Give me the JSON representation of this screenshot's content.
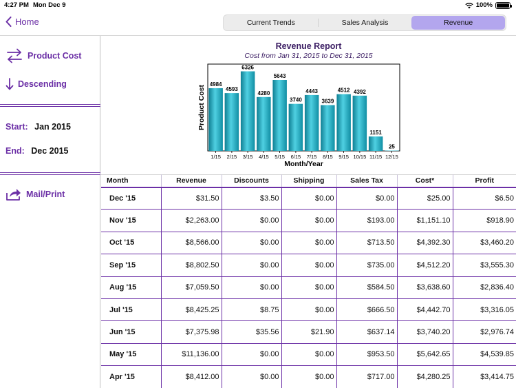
{
  "status": {
    "time": "4:27 PM",
    "date": "Mon Dec 9",
    "battery": "100%"
  },
  "nav": {
    "back_label": "Home",
    "tabs": [
      {
        "label": "Current Trends",
        "active": false
      },
      {
        "label": "Sales Analysis",
        "active": false
      },
      {
        "label": "Revenue",
        "active": true
      }
    ]
  },
  "sidebar": {
    "sort_field": "Product Cost",
    "sort_order": "Descending",
    "start_label": "Start:",
    "start_value": "Jan 2015",
    "end_label": "End:",
    "end_value": "Dec 2015",
    "mail_print": "Mail/Print"
  },
  "chart_data": {
    "type": "bar",
    "title": "Revenue Report",
    "subtitle": "Cost from Jan 31, 2015 to Dec 31, 2015",
    "xlabel": "Month/Year",
    "ylabel": "Product Cost",
    "categories": [
      "1/15",
      "2/15",
      "3/15",
      "4/15",
      "5/15",
      "6/15",
      "7/15",
      "8/15",
      "9/15",
      "10/15",
      "11/15",
      "12/15"
    ],
    "values": [
      4984,
      4593,
      6326,
      4280,
      5643,
      3740,
      4443,
      3639,
      4512,
      4392,
      1151,
      25
    ],
    "ylim": [
      0,
      6900
    ],
    "bar_color": "#1fa9c0"
  },
  "table": {
    "columns": [
      "Month",
      "Revenue",
      "Discounts",
      "Shipping",
      "Sales Tax",
      "Cost*",
      "Profit"
    ],
    "rows": [
      [
        "Dec '15",
        "$31.50",
        "$3.50",
        "$0.00",
        "$0.00",
        "$25.00",
        "$6.50"
      ],
      [
        "Nov '15",
        "$2,263.00",
        "$0.00",
        "$0.00",
        "$193.00",
        "$1,151.10",
        "$918.90"
      ],
      [
        "Oct '15",
        "$8,566.00",
        "$0.00",
        "$0.00",
        "$713.50",
        "$4,392.30",
        "$3,460.20"
      ],
      [
        "Sep '15",
        "$8,802.50",
        "$0.00",
        "$0.00",
        "$735.00",
        "$4,512.20",
        "$3,555.30"
      ],
      [
        "Aug '15",
        "$7,059.50",
        "$0.00",
        "$0.00",
        "$584.50",
        "$3,638.60",
        "$2,836.40"
      ],
      [
        "Jul '15",
        "$8,425.25",
        "$8.75",
        "$0.00",
        "$666.50",
        "$4,442.70",
        "$3,316.05"
      ],
      [
        "Jun '15",
        "$7,375.98",
        "$35.56",
        "$21.90",
        "$637.14",
        "$3,740.20",
        "$2,976.74"
      ],
      [
        "May '15",
        "$11,136.00",
        "$0.00",
        "$0.00",
        "$953.50",
        "$5,642.65",
        "$4,539.85"
      ],
      [
        "Apr '15",
        "$8,412.00",
        "$0.00",
        "$0.00",
        "$717.00",
        "$4,280.25",
        "$3,414.75"
      ]
    ]
  }
}
